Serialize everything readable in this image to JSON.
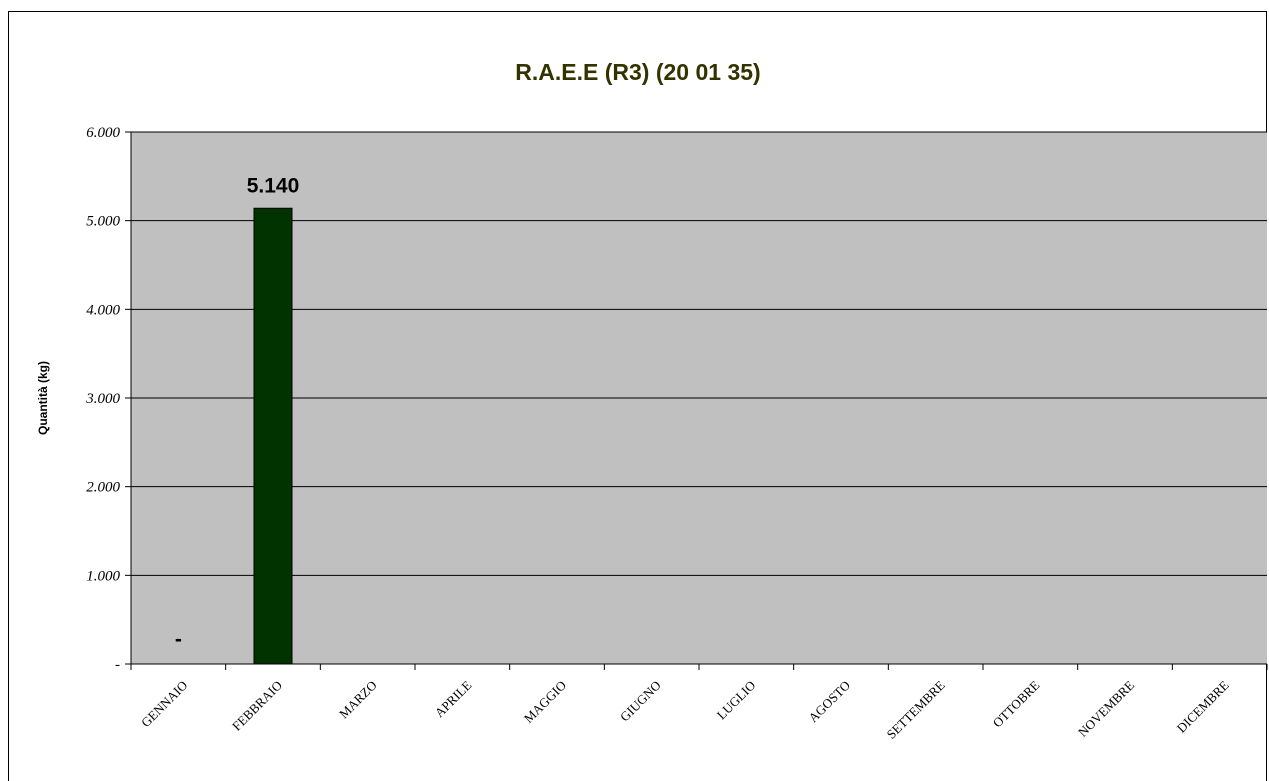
{
  "chart_data": {
    "type": "bar",
    "title": "R.A.E.E (R3)  (20 01 35)",
    "ylabel": "Quantità (kg)",
    "xlabel": "",
    "categories": [
      "GENNAIO",
      "FEBBRAIO",
      "MARZO",
      "APRILE",
      "MAGGIO",
      "GIUGNO",
      "LUGLIO",
      "AGOSTO",
      "SETTEMBRE",
      "OTTOBRE",
      "NOVEMBRE",
      "DICEMBRE"
    ],
    "values": [
      0,
      5140,
      0,
      0,
      0,
      0,
      0,
      0,
      0,
      0,
      0,
      0
    ],
    "data_labels": [
      "-",
      "5.140",
      "",
      "",
      "",
      "",
      "",
      "",
      "",
      "",
      "",
      ""
    ],
    "ylim": [
      0,
      6000
    ],
    "yticks": [
      0,
      1000,
      2000,
      3000,
      4000,
      5000,
      6000
    ],
    "ytick_labels": [
      "-",
      "1.000",
      "2.000",
      "3.000",
      "4.000",
      "5.000",
      "6.000"
    ],
    "grid": true,
    "legend": false,
    "colors": {
      "bar": "#003300",
      "plot_background": "#c0c0c0",
      "title": "#333300",
      "gridline": "#000000"
    }
  }
}
